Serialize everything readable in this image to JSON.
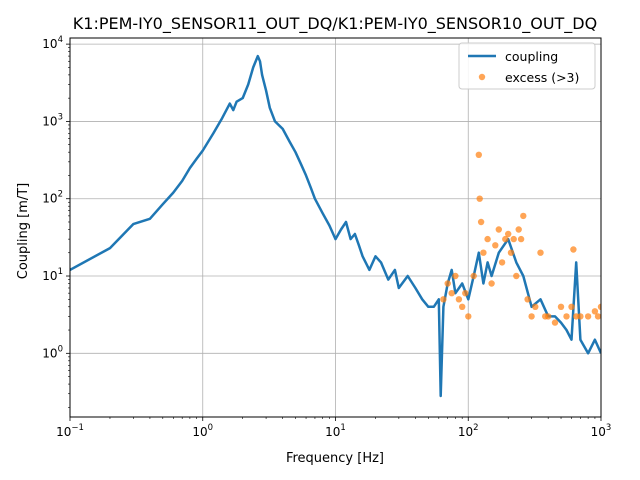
{
  "chart_data": {
    "type": "line",
    "title": "K1:PEM-IY0_SENSOR11_OUT_DQ/K1:PEM-IY0_SENSOR10_OUT_DQ",
    "xlabel": "Frequency [Hz]",
    "ylabel": "Coupling [m/T]",
    "xscale": "log",
    "yscale": "log",
    "xlim": [
      0.1,
      1000
    ],
    "ylim": [
      0.15,
      12000
    ],
    "grid": true,
    "legend_position": "top-right",
    "x_ticks": [
      {
        "base": "10",
        "exp": "−1"
      },
      {
        "base": "10",
        "exp": "0"
      },
      {
        "base": "10",
        "exp": "1"
      },
      {
        "base": "10",
        "exp": "2"
      },
      {
        "base": "10",
        "exp": "3"
      }
    ],
    "y_ticks": [
      {
        "base": "10",
        "exp": "0"
      },
      {
        "base": "10",
        "exp": "1"
      },
      {
        "base": "10",
        "exp": "2"
      },
      {
        "base": "10",
        "exp": "3"
      },
      {
        "base": "10",
        "exp": "4"
      }
    ],
    "series": [
      {
        "name": "coupling",
        "kind": "line",
        "color": "#1f77b4",
        "x": [
          0.1,
          0.2,
          0.3,
          0.4,
          0.5,
          0.6,
          0.7,
          0.8,
          0.9,
          1.0,
          1.2,
          1.4,
          1.6,
          1.7,
          1.8,
          2.0,
          2.2,
          2.4,
          2.6,
          2.7,
          2.8,
          3.0,
          3.2,
          3.5,
          4.0,
          4.5,
          5.0,
          5.5,
          6.0,
          6.5,
          7.0,
          8.0,
          9.0,
          10.0,
          11.0,
          12.0,
          13.0,
          14.0,
          15.0,
          16.0,
          18.0,
          20.0,
          22.0,
          25.0,
          28.0,
          30.0,
          35.0,
          40.0,
          45.0,
          50.0,
          55.0,
          60.0,
          62.0,
          65.0,
          70.0,
          75.0,
          80.0,
          90.0,
          100.0,
          110.0,
          120.0,
          130.0,
          140.0,
          150.0,
          170.0,
          200.0,
          230.0,
          260.0,
          300.0,
          350.0,
          400.0,
          450.0,
          500.0,
          550.0,
          600.0,
          650.0,
          700.0,
          800.0,
          900.0,
          1000.0
        ],
        "y": [
          12,
          23,
          47,
          55,
          85,
          120,
          170,
          250,
          330,
          420,
          700,
          1100,
          1700,
          1400,
          1800,
          2000,
          3000,
          5000,
          7000,
          6000,
          4000,
          2500,
          1500,
          1000,
          800,
          550,
          400,
          280,
          200,
          140,
          100,
          65,
          45,
          30,
          40,
          50,
          30,
          35,
          25,
          18,
          12,
          18,
          15,
          9,
          12,
          7,
          10,
          7,
          5,
          4,
          4,
          5,
          0.28,
          4,
          8,
          12,
          6,
          8,
          5,
          10,
          20,
          8,
          15,
          10,
          20,
          30,
          15,
          10,
          4,
          5,
          3,
          3,
          2.5,
          2,
          1.5,
          15,
          1.5,
          1,
          1.5,
          1
        ]
      },
      {
        "name": "excess (>3)",
        "kind": "scatter",
        "color": "#ff7f0e",
        "x": [
          65,
          70,
          75,
          80,
          85,
          90,
          95,
          100,
          110,
          120,
          122,
          125,
          130,
          140,
          150,
          160,
          170,
          180,
          190,
          200,
          210,
          220,
          230,
          240,
          250,
          260,
          280,
          300,
          320,
          350,
          380,
          400,
          450,
          500,
          550,
          600,
          620,
          650,
          700,
          800,
          900,
          950,
          1000
        ],
        "y": [
          5,
          8,
          6,
          10,
          5,
          4,
          6,
          3,
          10,
          370,
          100,
          50,
          20,
          30,
          8,
          25,
          40,
          15,
          30,
          35,
          20,
          30,
          10,
          40,
          30,
          60,
          5,
          3,
          4,
          20,
          3,
          3,
          2.5,
          4,
          3,
          4,
          22,
          3,
          3,
          3,
          3.5,
          3,
          4
        ]
      }
    ]
  }
}
